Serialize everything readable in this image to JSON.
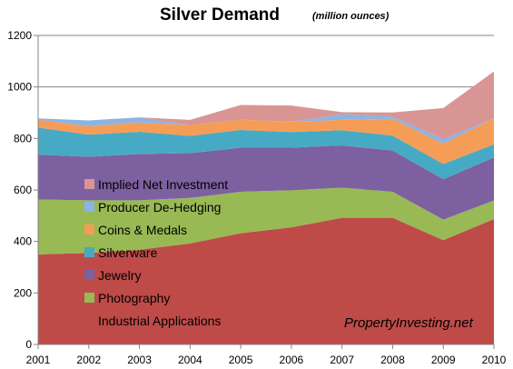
{
  "chart_data": {
    "type": "area",
    "stacked": true,
    "title": "Silver Demand",
    "subtitle": "(million ounces)",
    "xlabel": "",
    "ylabel": "",
    "x": [
      "2001",
      "2002",
      "2003",
      "2004",
      "2005",
      "2006",
      "2007",
      "2008",
      "2009",
      "2010"
    ],
    "ylim": [
      0,
      1200
    ],
    "yticks": [
      0,
      200,
      400,
      600,
      800,
      1000,
      1200
    ],
    "grid": "horizontal",
    "legend_position": "inside-bottom-left",
    "series": [
      {
        "name": "Industrial Applications",
        "color": "#BE4B48",
        "values": [
          350,
          355,
          368,
          392,
          432,
          455,
          492,
          492,
          405,
          487
        ]
      },
      {
        "name": "Photography",
        "color": "#98B954",
        "values": [
          213,
          205,
          192,
          177,
          161,
          144,
          117,
          101,
          80,
          72
        ]
      },
      {
        "name": "Jewelry",
        "color": "#7D60A0",
        "values": [
          174,
          169,
          180,
          174,
          171,
          165,
          164,
          160,
          157,
          167
        ]
      },
      {
        "name": "Silverware",
        "color": "#46AAC5",
        "values": [
          105,
          86,
          86,
          67,
          69,
          61,
          59,
          58,
          59,
          51
        ]
      },
      {
        "name": "Coins & Medals",
        "color": "#F59D56",
        "values": [
          31,
          32,
          36,
          42,
          40,
          40,
          40,
          65,
          79,
          101
        ]
      },
      {
        "name": "Producer De-Hedging",
        "color": "#8DB3E2",
        "values": [
          5,
          23,
          20,
          0,
          0,
          0,
          23,
          9,
          18,
          0
        ]
      },
      {
        "name": "Implied Net Investment",
        "color": "#D99594",
        "values": [
          0,
          0,
          0,
          20,
          57,
          63,
          7,
          16,
          120,
          182
        ]
      }
    ],
    "watermark": "PropertyInvesting.net"
  }
}
